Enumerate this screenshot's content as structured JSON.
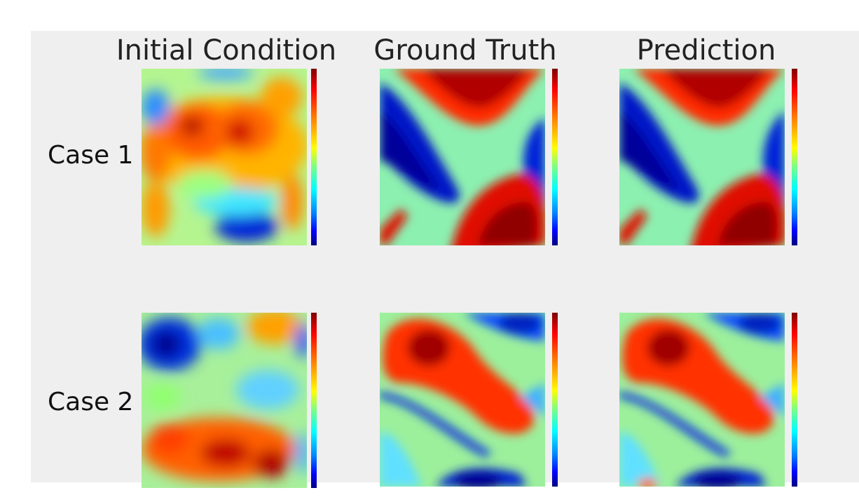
{
  "titles": {
    "initial_condition": "Initial Condition",
    "ground_truth": "Ground Truth",
    "prediction": "Prediction"
  },
  "rows": {
    "case1": "Case 1",
    "case2": "Case 2"
  },
  "colormap": "jet",
  "colors": {
    "background": "#efefef"
  }
}
